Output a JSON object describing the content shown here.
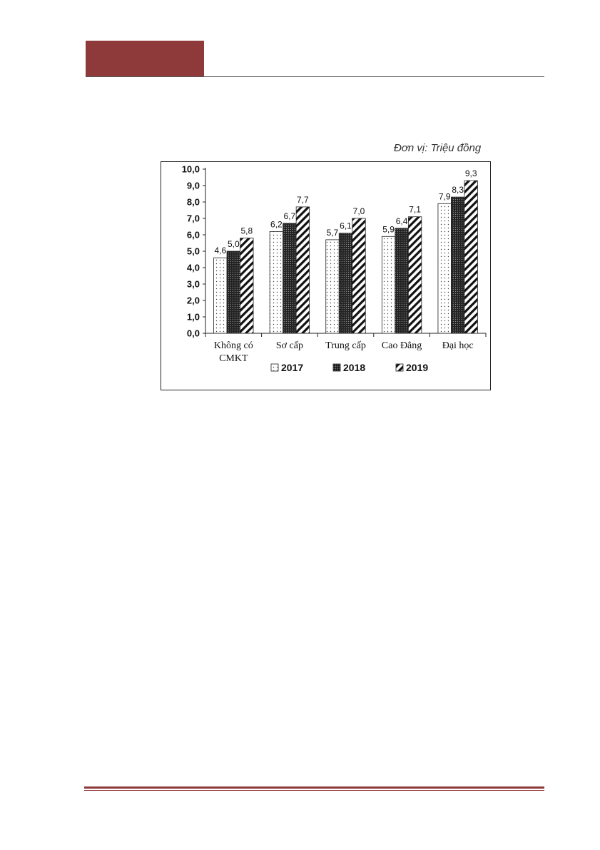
{
  "unit_note": "Đơn vị: Triệu đồng",
  "chart_data": {
    "type": "bar",
    "title": "",
    "xlabel": "",
    "ylabel": "",
    "ylim": [
      0,
      10
    ],
    "yticks": [
      "0,0",
      "1,0",
      "2,0",
      "3,0",
      "4,0",
      "5,0",
      "6,0",
      "7,0",
      "8,0",
      "9,0",
      "10,0"
    ],
    "categories": [
      [
        "Không có",
        "CMKT"
      ],
      [
        "Sơ cấp"
      ],
      [
        "Trung cấp"
      ],
      [
        "Cao Đẳng"
      ],
      [
        "Đại học"
      ]
    ],
    "series": [
      {
        "name": "2017",
        "values": [
          4.6,
          6.2,
          5.7,
          5.9,
          7.9
        ],
        "labels": [
          "4,6",
          "6,2",
          "5,7",
          "5,9",
          "7,9"
        ],
        "pattern": "dots"
      },
      {
        "name": "2018",
        "values": [
          5.0,
          6.7,
          6.1,
          6.4,
          8.3
        ],
        "labels": [
          "5,0",
          "6,7",
          "6,1",
          "6,4",
          "8,3"
        ],
        "pattern": "dark-grid"
      },
      {
        "name": "2019",
        "values": [
          5.8,
          7.7,
          7.0,
          7.1,
          9.3
        ],
        "labels": [
          "5,8",
          "7,7",
          "7,0",
          "7,1",
          "9,3"
        ],
        "pattern": "diagonal"
      }
    ],
    "legend_position": "bottom",
    "grid": false
  }
}
